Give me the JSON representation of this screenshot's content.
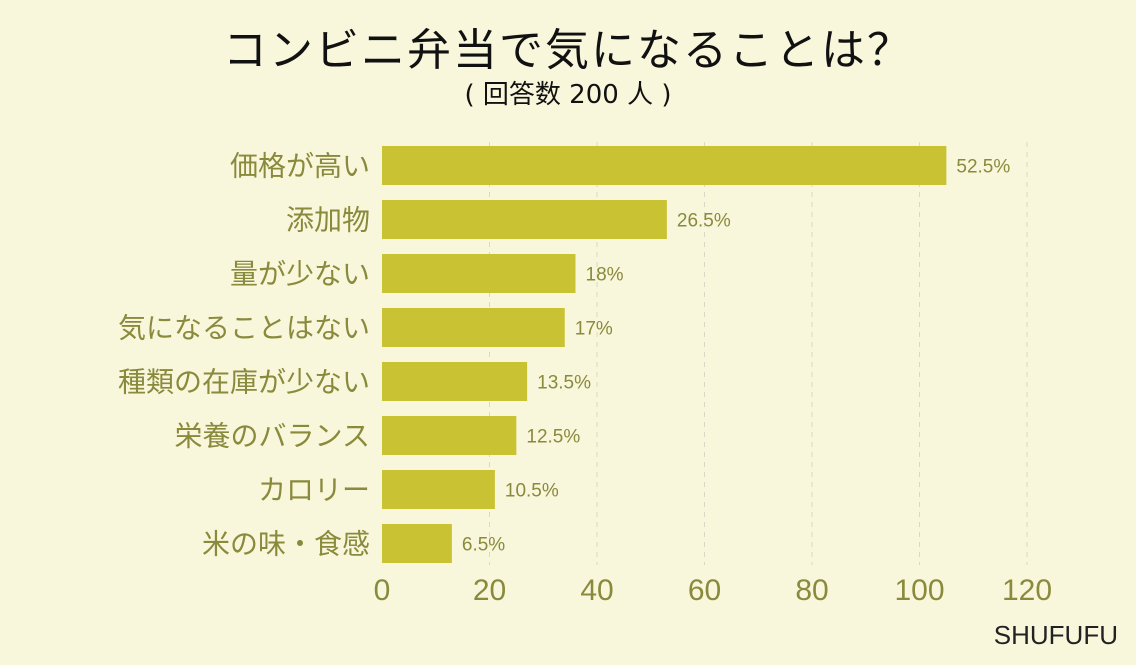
{
  "title": "コンビニ弁当で気になることは？",
  "subtitle": "( 回答数 200 人 )",
  "watermark": "SHUFUFU",
  "colors": {
    "background": "#f8f7dc",
    "bar": "#c9c233",
    "axis_text": "#8a8a3c",
    "category_text": "#8a8a3c",
    "value_text": "#8a8a3c",
    "grid": "#d9d8c4"
  },
  "chart_data": {
    "type": "bar",
    "orientation": "horizontal",
    "categories": [
      "価格が高い",
      "添加物",
      "量が少ない",
      "気になることはない",
      "種類の在庫が少ない",
      "栄養のバランス",
      "カロリー",
      "米の味・食感"
    ],
    "values": [
      105,
      53,
      36,
      34,
      27,
      25,
      21,
      13
    ],
    "value_labels": [
      "52.5%",
      "26.5%",
      "18%",
      "17%",
      "13.5%",
      "12.5%",
      "10.5%",
      "6.5%"
    ],
    "xlim": [
      0,
      120
    ],
    "xticks": [
      0,
      20,
      40,
      60,
      80,
      100,
      120
    ],
    "grid": true
  }
}
